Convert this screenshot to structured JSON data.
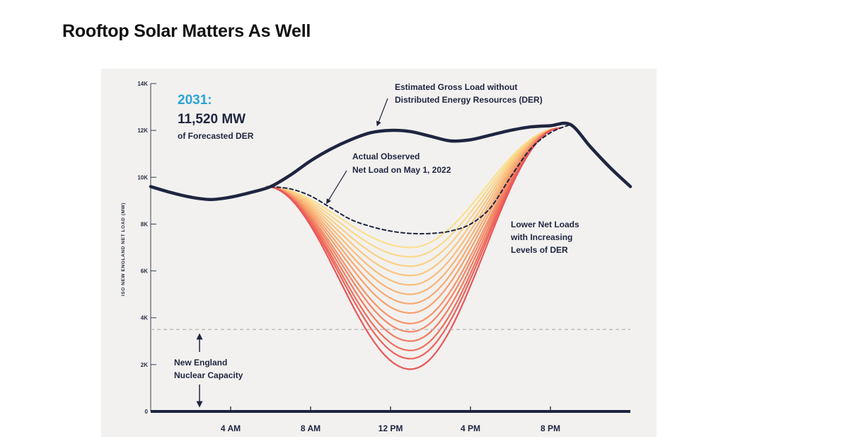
{
  "slide": {
    "title": "Rooftop Solar Matters As Well"
  },
  "chart_data": {
    "type": "line",
    "title": "",
    "ylabel": "ISO NEW ENGLAND NET LOAD (MW)",
    "xlabel": "",
    "ylim": [
      0,
      14000
    ],
    "xlim": [
      0,
      24
    ],
    "y_ticks": [
      {
        "value": 0,
        "label": "0"
      },
      {
        "value": 2000,
        "label": "2K"
      },
      {
        "value": 4000,
        "label": "4K"
      },
      {
        "value": 6000,
        "label": "6K"
      },
      {
        "value": 8000,
        "label": "8K"
      },
      {
        "value": 10000,
        "label": "10K"
      },
      {
        "value": 12000,
        "label": "12K"
      },
      {
        "value": 14000,
        "label": "14K"
      }
    ],
    "x_ticks": [
      {
        "value": 4,
        "label": "4 AM"
      },
      {
        "value": 8,
        "label": "8 AM"
      },
      {
        "value": 12,
        "label": "12 PM"
      },
      {
        "value": 16,
        "label": "4 PM"
      },
      {
        "value": 20,
        "label": "8 PM"
      }
    ],
    "headline": {
      "year": "2031:",
      "value": "11,520 MW",
      "caption": "of Forecasted DER"
    },
    "series": [
      {
        "name": "Estimated Gross Load without Distributed Energy Resources (DER)",
        "style": "solid",
        "color": "#1f2540",
        "x": [
          0,
          1,
          2,
          3,
          4,
          5,
          6,
          7,
          8,
          9,
          10,
          11,
          12,
          13,
          14,
          15,
          16,
          17,
          18,
          19,
          20,
          21,
          22,
          23,
          24
        ],
        "y": [
          9600,
          9350,
          9150,
          9050,
          9150,
          9350,
          9600,
          10100,
          10700,
          11200,
          11600,
          11900,
          12000,
          11950,
          11750,
          11550,
          11600,
          11800,
          12000,
          12150,
          12200,
          12250,
          11300,
          10400,
          9600
        ]
      },
      {
        "name": "Actual Observed Net Load on May 1, 2022",
        "style": "dashed",
        "color": "#1f2540",
        "x": [
          6,
          7,
          8,
          9,
          10,
          11,
          12,
          13,
          14,
          15,
          16,
          17,
          18,
          19,
          20,
          21
        ],
        "y": [
          9600,
          9500,
          9200,
          8700,
          8200,
          7900,
          7700,
          7600,
          7600,
          7700,
          8000,
          8700,
          10000,
          11200,
          11900,
          12250
        ]
      }
    ],
    "der_levels": {
      "label": "Lower Net Loads with Increasing Levels of DER",
      "start_x": 5.8,
      "min_x": 13,
      "end_x": 20.5,
      "start_y": 9600,
      "end_y": 12100,
      "minimums": [
        7000,
        6600,
        6200,
        5800,
        5400,
        5000,
        4600,
        4200,
        3750,
        3400,
        3000,
        2600,
        2250,
        1800
      ],
      "colors": [
        "#fbe08f",
        "#fbd88a",
        "#fbcf85",
        "#fac680",
        "#f9bd7b",
        "#f8b476",
        "#f7aa72",
        "#f6a06d",
        "#f59469",
        "#f38865",
        "#f17b61",
        "#ef6e5e",
        "#ec625b",
        "#e95658"
      ]
    },
    "reference_line": {
      "name": "New England Nuclear Capacity",
      "value": 3500,
      "style": "dashed",
      "color": "#b5b5b5"
    },
    "annotations": [
      {
        "name": "gross-load-label",
        "lines": [
          "Estimated Gross Load without",
          "Distributed Energy Resources (DER)"
        ]
      },
      {
        "name": "observed-net-load-label",
        "lines": [
          "Actual Observed",
          "Net Load on May 1, 2022"
        ]
      },
      {
        "name": "der-levels-label",
        "lines": [
          "Lower Net Loads",
          "with Increasing",
          "Levels of DER"
        ]
      },
      {
        "name": "nuclear-capacity-label",
        "lines": [
          "New England",
          "Nuclear Capacity"
        ]
      }
    ]
  }
}
